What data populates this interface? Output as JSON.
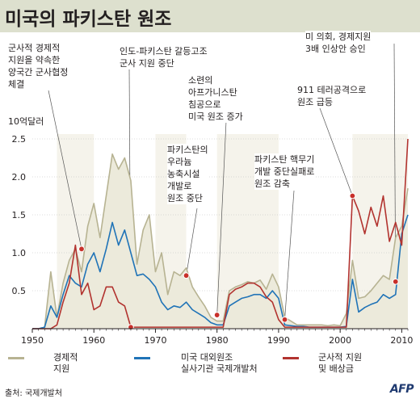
{
  "title": "미국의 파키스탄 원조",
  "unit_label": "10억달러",
  "source": "출처: 국제개발처",
  "logo": "AFP",
  "annotations": [
    {
      "key": "a1",
      "text": "군사적 경제적\n지원을 약속한\n양국간 군사협정\n체결"
    },
    {
      "key": "a2",
      "text": "인도-파키스탄 갈등고조\n군사 지원 중단"
    },
    {
      "key": "a3",
      "text": "소련의\n아프가니스탄\n침공으로\n미국 원조 증가"
    },
    {
      "key": "a4",
      "text": "파키스탄의\n우라늄\n농축시설\n개발로\n원조 중단"
    },
    {
      "key": "a5",
      "text": "911 테러공격으로\n원조 급등"
    },
    {
      "key": "a6",
      "text": "파키스탄 핵무기\n개발 중단실패로\n원조 감축"
    },
    {
      "key": "a7",
      "text": "미 의회, 경제지원\n3배 인상안 승인"
    }
  ],
  "legend": [
    {
      "label": "경제적\n지원",
      "color": "#b7b392"
    },
    {
      "label": "미국 대외원조\n실사기관 국제개발처",
      "color": "#1f73b7"
    },
    {
      "label": "군사적 지원\n및 배상금",
      "color": "#b2332f"
    }
  ],
  "colors": {
    "title_band": "#dde0ce",
    "economic_fill": "#eceadb",
    "economic_line": "#b7b392",
    "usaid_line": "#1f73b7",
    "military_line": "#b2332f",
    "shade": "#eceadb",
    "marker": "#c8302a",
    "grid": "#bcbcbc"
  },
  "chart_data": {
    "type": "line",
    "title": "미국의 파키스탄 원조",
    "ylabel": "10억달러",
    "xlim": [
      1950,
      2011
    ],
    "ylim": [
      0,
      2.5
    ],
    "x_ticks": [
      1950,
      1960,
      1970,
      1980,
      1990,
      2000,
      2010
    ],
    "y_ticks": [
      0.5,
      1.0,
      1.5,
      2.0,
      2.5
    ],
    "y_tick_labels": [
      "0.5",
      "1.0",
      "1.5",
      "2.0",
      "2.5"
    ],
    "shaded_periods": [
      [
        1954,
        1960
      ],
      [
        1970,
        1975
      ],
      [
        1980,
        1990
      ],
      [
        2002,
        2011
      ]
    ],
    "event_markers": [
      {
        "x": 1958,
        "y": 1.05
      },
      {
        "x": 1966,
        "y": 0.02
      },
      {
        "x": 1975,
        "y": 0.7
      },
      {
        "x": 1980,
        "y": 0.18
      },
      {
        "x": 1991,
        "y": 0.12
      },
      {
        "x": 2002,
        "y": 1.75
      },
      {
        "x": 2009,
        "y": 0.62
      }
    ],
    "series": [
      {
        "name": "경제적 지원",
        "x": [
          1950,
          1951,
          1952,
          1953,
          1954,
          1955,
          1956,
          1957,
          1958,
          1959,
          1960,
          1961,
          1962,
          1963,
          1964,
          1965,
          1966,
          1967,
          1968,
          1969,
          1970,
          1971,
          1972,
          1973,
          1974,
          1975,
          1976,
          1977,
          1978,
          1979,
          1980,
          1981,
          1982,
          1983,
          1984,
          1985,
          1986,
          1987,
          1988,
          1989,
          1990,
          1991,
          1992,
          1993,
          1994,
          1995,
          1996,
          1997,
          1998,
          1999,
          2000,
          2001,
          2002,
          2003,
          2004,
          2005,
          2006,
          2007,
          2008,
          2009,
          2010,
          2011
        ],
        "values": [
          0,
          0,
          0.02,
          0.75,
          0.15,
          0.6,
          0.9,
          1.05,
          0.75,
          1.35,
          1.65,
          1.2,
          1.75,
          2.3,
          2.1,
          2.25,
          1.95,
          0.85,
          1.3,
          1.5,
          0.75,
          1.0,
          0.45,
          0.75,
          0.7,
          0.8,
          0.55,
          0.42,
          0.3,
          0.15,
          0.1,
          0.1,
          0.5,
          0.55,
          0.58,
          0.62,
          0.6,
          0.64,
          0.52,
          0.72,
          0.55,
          0.15,
          0.1,
          0.05,
          0.05,
          0.05,
          0.05,
          0.05,
          0.04,
          0.05,
          0.04,
          0.2,
          0.9,
          0.4,
          0.42,
          0.5,
          0.6,
          0.7,
          0.65,
          1.2,
          1.35,
          1.85
        ]
      },
      {
        "name": "미국 대외원조 실사기관 국제개발처",
        "x": [
          1950,
          1951,
          1952,
          1953,
          1954,
          1955,
          1956,
          1957,
          1958,
          1959,
          1960,
          1961,
          1962,
          1963,
          1964,
          1965,
          1966,
          1967,
          1968,
          1969,
          1970,
          1971,
          1972,
          1973,
          1974,
          1975,
          1976,
          1977,
          1978,
          1979,
          1980,
          1981,
          1982,
          1983,
          1984,
          1985,
          1986,
          1987,
          1988,
          1989,
          1990,
          1991,
          1992,
          1993,
          1994,
          1995,
          1996,
          1997,
          1998,
          1999,
          2000,
          2001,
          2002,
          2003,
          2004,
          2005,
          2006,
          2007,
          2008,
          2009,
          2010,
          2011
        ],
        "values": [
          0,
          0,
          0.02,
          0.3,
          0.15,
          0.45,
          0.7,
          0.6,
          0.55,
          0.85,
          1.0,
          0.75,
          1.05,
          1.4,
          1.1,
          1.3,
          1.0,
          0.7,
          0.72,
          0.65,
          0.55,
          0.35,
          0.25,
          0.3,
          0.28,
          0.35,
          0.25,
          0.2,
          0.15,
          0.08,
          0.05,
          0.05,
          0.3,
          0.35,
          0.4,
          0.42,
          0.45,
          0.45,
          0.4,
          0.5,
          0.4,
          0.05,
          0.04,
          0.03,
          0.03,
          0.02,
          0.02,
          0.02,
          0.02,
          0.02,
          0.02,
          0.03,
          0.65,
          0.22,
          0.28,
          0.32,
          0.35,
          0.45,
          0.4,
          0.45,
          1.25,
          1.5
        ]
      },
      {
        "name": "군사적 지원 및 배상금",
        "x": [
          1950,
          1951,
          1952,
          1953,
          1954,
          1955,
          1956,
          1957,
          1958,
          1959,
          1960,
          1961,
          1962,
          1963,
          1964,
          1965,
          1966,
          1967,
          1968,
          1969,
          1970,
          1971,
          1972,
          1973,
          1974,
          1975,
          1976,
          1977,
          1978,
          1979,
          1980,
          1981,
          1982,
          1983,
          1984,
          1985,
          1986,
          1987,
          1988,
          1989,
          1990,
          1991,
          1992,
          1993,
          1994,
          1995,
          1996,
          1997,
          1998,
          1999,
          2000,
          2001,
          2002,
          2003,
          2004,
          2005,
          2006,
          2007,
          2008,
          2009,
          2010,
          2011
        ],
        "values": [
          0,
          0,
          0,
          0,
          0.05,
          0.35,
          0.6,
          1.1,
          0.45,
          0.6,
          0.25,
          0.3,
          0.55,
          0.55,
          0.35,
          0.3,
          0.02,
          0.02,
          0.02,
          0.02,
          0.02,
          0.02,
          0.02,
          0.02,
          0.02,
          0.02,
          0.02,
          0.02,
          0.02,
          0.02,
          0.02,
          0.02,
          0.45,
          0.52,
          0.55,
          0.6,
          0.6,
          0.55,
          0.42,
          0.35,
          0.12,
          0.02,
          0.02,
          0.02,
          0.02,
          0.02,
          0.02,
          0.02,
          0.02,
          0.02,
          0.02,
          0.02,
          1.75,
          1.55,
          1.25,
          1.6,
          1.35,
          1.75,
          1.15,
          1.4,
          1.1,
          2.5
        ]
      }
    ]
  }
}
